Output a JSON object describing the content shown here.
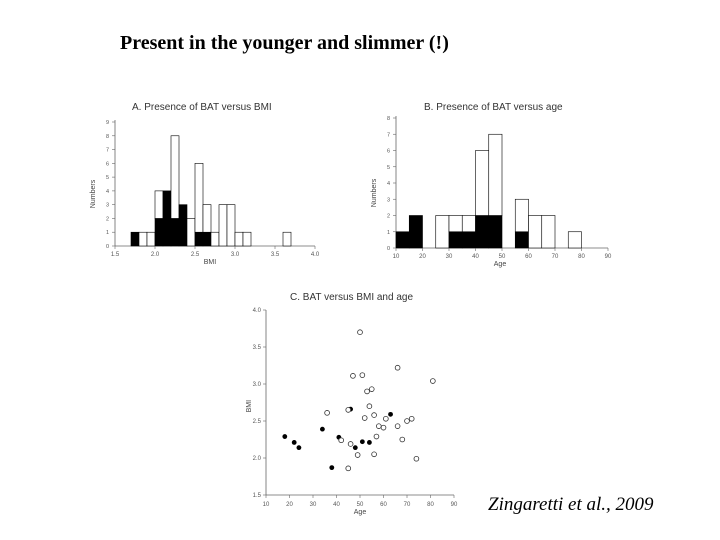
{
  "slide": {
    "title": "Present in the younger and slimmer (!)",
    "citation": "Zingaretti et al., 2009"
  },
  "chart_data": [
    {
      "id": "A",
      "type": "bar",
      "title": "A.  Presence of BAT versus BMI",
      "xlabel": "BMI",
      "ylabel": "Numbers",
      "xlim": [
        15,
        40
      ],
      "ylim": [
        0,
        9
      ],
      "xticks": [
        15,
        20,
        25,
        30,
        35,
        40
      ],
      "xtick_labels": [
        "1.5",
        "2.0",
        "2.5",
        "3.0",
        "3.5",
        "4.0"
      ],
      "yticks": [
        0,
        1,
        2,
        3,
        4,
        5,
        6,
        7,
        8,
        9
      ],
      "bin_width": 1,
      "bins": [
        {
          "x": 17,
          "filled": 1,
          "open": 0
        },
        {
          "x": 18,
          "filled": 0,
          "open": 1
        },
        {
          "x": 19,
          "filled": 0,
          "open": 1
        },
        {
          "x": 20,
          "filled": 2,
          "open": 2
        },
        {
          "x": 21,
          "filled": 4,
          "open": 0
        },
        {
          "x": 22,
          "filled": 2,
          "open": 6
        },
        {
          "x": 23,
          "filled": 3,
          "open": 0
        },
        {
          "x": 24,
          "filled": 0,
          "open": 2
        },
        {
          "x": 25,
          "filled": 1,
          "open": 5
        },
        {
          "x": 26,
          "filled": 1,
          "open": 2
        },
        {
          "x": 27,
          "filled": 0,
          "open": 1
        },
        {
          "x": 28,
          "filled": 0,
          "open": 3
        },
        {
          "x": 29,
          "filled": 0,
          "open": 3
        },
        {
          "x": 30,
          "filled": 0,
          "open": 1
        },
        {
          "x": 31,
          "filled": 0,
          "open": 1
        },
        {
          "x": 32,
          "filled": 0,
          "open": 0
        },
        {
          "x": 33,
          "filled": 0,
          "open": 0
        },
        {
          "x": 34,
          "filled": 0,
          "open": 0
        },
        {
          "x": 35,
          "filled": 0,
          "open": 0
        },
        {
          "x": 36,
          "filled": 0,
          "open": 1
        }
      ],
      "grid": false
    },
    {
      "id": "B",
      "type": "bar",
      "title": "B.  Presence of BAT  versus  age",
      "xlabel": "Age",
      "ylabel": "Numbers",
      "xlim": [
        10,
        90
      ],
      "ylim": [
        0,
        8
      ],
      "xticks": [
        10,
        20,
        30,
        40,
        50,
        60,
        70,
        80,
        90
      ],
      "xtick_labels": [
        "10",
        "20",
        "30",
        "40",
        "50",
        "60",
        "70",
        "80",
        "90"
      ],
      "yticks": [
        0,
        1,
        2,
        3,
        4,
        5,
        6,
        7,
        8
      ],
      "bin_width": 5,
      "bins": [
        {
          "x": 10,
          "filled": 1,
          "open": 0
        },
        {
          "x": 15,
          "filled": 2,
          "open": 0
        },
        {
          "x": 20,
          "filled": 0,
          "open": 0
        },
        {
          "x": 25,
          "filled": 0,
          "open": 2
        },
        {
          "x": 30,
          "filled": 1,
          "open": 1
        },
        {
          "x": 35,
          "filled": 1,
          "open": 1
        },
        {
          "x": 40,
          "filled": 2,
          "open": 4
        },
        {
          "x": 45,
          "filled": 2,
          "open": 5
        },
        {
          "x": 50,
          "filled": 0,
          "open": 0
        },
        {
          "x": 55,
          "filled": 1,
          "open": 2
        },
        {
          "x": 60,
          "filled": 0,
          "open": 2
        },
        {
          "x": 65,
          "filled": 0,
          "open": 2
        },
        {
          "x": 70,
          "filled": 0,
          "open": 0
        },
        {
          "x": 75,
          "filled": 0,
          "open": 1
        }
      ],
      "grid": false
    },
    {
      "id": "C",
      "type": "scatter",
      "title": "C.  BAT versus BMI and age",
      "xlabel": "Age",
      "ylabel": "BMI",
      "xlim": [
        10,
        90
      ],
      "ylim": [
        15,
        40
      ],
      "xticks": [
        10,
        20,
        30,
        40,
        50,
        60,
        70,
        80,
        90
      ],
      "xtick_labels": [
        "10",
        "20",
        "30",
        "40",
        "50",
        "60",
        "70",
        "80",
        "90"
      ],
      "yticks": [
        15,
        20,
        25,
        30,
        35,
        40
      ],
      "ytick_labels": [
        "1.5",
        "2.0",
        "2.5",
        "3.0",
        "3.5",
        "4.0"
      ],
      "series": [
        {
          "marker": "filled",
          "points": [
            [
              18,
              22.9
            ],
            [
              22,
              22.1
            ],
            [
              24,
              21.4
            ],
            [
              34,
              23.9
            ],
            [
              38,
              18.7
            ],
            [
              41,
              22.8
            ],
            [
              46,
              26.6
            ],
            [
              48,
              21.4
            ],
            [
              51,
              22.2
            ],
            [
              54,
              22.1
            ],
            [
              63,
              25.9
            ]
          ]
        },
        {
          "marker": "open",
          "points": [
            [
              36,
              26.1
            ],
            [
              45,
              26.5
            ],
            [
              47,
              31.1
            ],
            [
              50,
              37.0
            ],
            [
              51,
              31.2
            ],
            [
              53,
              29.0
            ],
            [
              55,
              29.3
            ],
            [
              58,
              24.3
            ],
            [
              57,
              22.9
            ],
            [
              49,
              20.4
            ],
            [
              46,
              21.9
            ],
            [
              52,
              25.4
            ],
            [
              54,
              27.0
            ],
            [
              61,
              25.3
            ],
            [
              66,
              32.2
            ],
            [
              56,
              25.8
            ],
            [
              60,
              24.1
            ],
            [
              66,
              24.3
            ],
            [
              68,
              22.5
            ],
            [
              70,
              25.0
            ],
            [
              72,
              25.3
            ],
            [
              74,
              19.9
            ],
            [
              81,
              30.4
            ],
            [
              42,
              22.4
            ],
            [
              45,
              18.6
            ],
            [
              56,
              20.5
            ]
          ]
        }
      ],
      "grid": false
    }
  ]
}
